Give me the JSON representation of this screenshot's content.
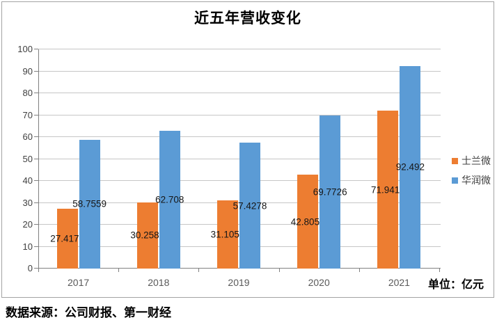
{
  "chart": {
    "title": "近五年营收变化",
    "unit_label": "单位：亿元",
    "source": "数据来源：公司财报、第一财经"
  },
  "chart_data": {
    "type": "bar",
    "title": "近五年营收变化",
    "categories": [
      "2017",
      "2018",
      "2019",
      "2020",
      "2021"
    ],
    "series": [
      {
        "name": "士兰微",
        "color": "#ED7D31",
        "values": [
          27.4179,
          30.2586,
          31.1057,
          42.8056,
          71.9415
        ]
      },
      {
        "name": "华润微",
        "color": "#5B9BD5",
        "values": [
          58.7559,
          62.708,
          57.4278,
          69.7726,
          92.492
        ]
      }
    ],
    "xlabel": "",
    "ylabel": "",
    "ylim": [
      0,
      100
    ],
    "y_ticks": [
      0,
      10,
      20,
      30,
      40,
      50,
      60,
      70,
      80,
      90,
      100
    ],
    "grid": true,
    "legend_position": "right",
    "data_labels": "inside-center",
    "unit": "亿元"
  },
  "style": {
    "grid_color": "#c6c6c6",
    "axis_color": "#808080",
    "frame_border_color": "#a3a3a3",
    "background": "#ffffff"
  }
}
